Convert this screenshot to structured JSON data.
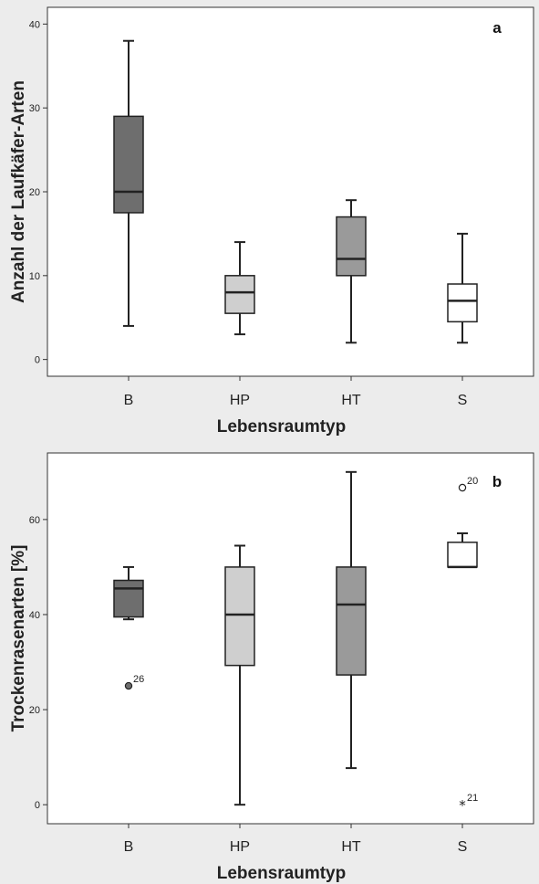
{
  "chart_data": [
    {
      "type": "boxplot",
      "panel_label": "a",
      "xlabel": "Lebensraumtyp",
      "ylabel": "Anzahl der Laufkäfer-Arten",
      "ylim": [
        -2,
        42
      ],
      "yticks": [
        0,
        10,
        20,
        30,
        40
      ],
      "categories": [
        "B",
        "HP",
        "HT",
        "S"
      ],
      "boxes": [
        {
          "category": "B",
          "min": 4,
          "q1": 17.5,
          "median": 20,
          "q3": 29,
          "max": 38,
          "fill": "#6e6e6e"
        },
        {
          "category": "HP",
          "min": 3,
          "q1": 5.5,
          "median": 8,
          "q3": 10,
          "max": 14,
          "fill": "#cfcfcf"
        },
        {
          "category": "HT",
          "min": 2,
          "q1": 10,
          "median": 12,
          "q3": 17,
          "max": 19,
          "fill": "#9a9a9a"
        },
        {
          "category": "S",
          "min": 2,
          "q1": 4.5,
          "median": 7,
          "q3": 9,
          "max": 15,
          "fill": "#ffffff"
        }
      ],
      "outliers": []
    },
    {
      "type": "boxplot",
      "panel_label": "b",
      "xlabel": "Lebensraumtyp",
      "ylabel": "Trockenrasenarten [%]",
      "ylim": [
        -4,
        74
      ],
      "yticks": [
        0,
        20,
        40,
        60
      ],
      "categories": [
        "B",
        "HP",
        "HT",
        "S"
      ],
      "boxes": [
        {
          "category": "B",
          "min": 39,
          "q1": 39.5,
          "median": 45.5,
          "q3": 47.2,
          "max": 50,
          "fill": "#6e6e6e"
        },
        {
          "category": "HP",
          "min": 0,
          "q1": 29.3,
          "median": 40,
          "q3": 50,
          "max": 54.5,
          "fill": "#cfcfcf"
        },
        {
          "category": "HT",
          "min": 7.7,
          "q1": 27.3,
          "median": 42.1,
          "q3": 50,
          "max": 70,
          "fill": "#9a9a9a"
        },
        {
          "category": "S",
          "min": 50,
          "q1": 50,
          "median": 50,
          "q3": 55.2,
          "max": 57.1,
          "fill": "#ffffff"
        }
      ],
      "outliers": [
        {
          "category": "B",
          "value": 25,
          "marker": "filled-circle",
          "label": "26"
        },
        {
          "category": "S",
          "value": 66.7,
          "marker": "circle",
          "label": "20"
        },
        {
          "category": "S",
          "value": 0,
          "marker": "star",
          "label": "21"
        }
      ]
    }
  ]
}
